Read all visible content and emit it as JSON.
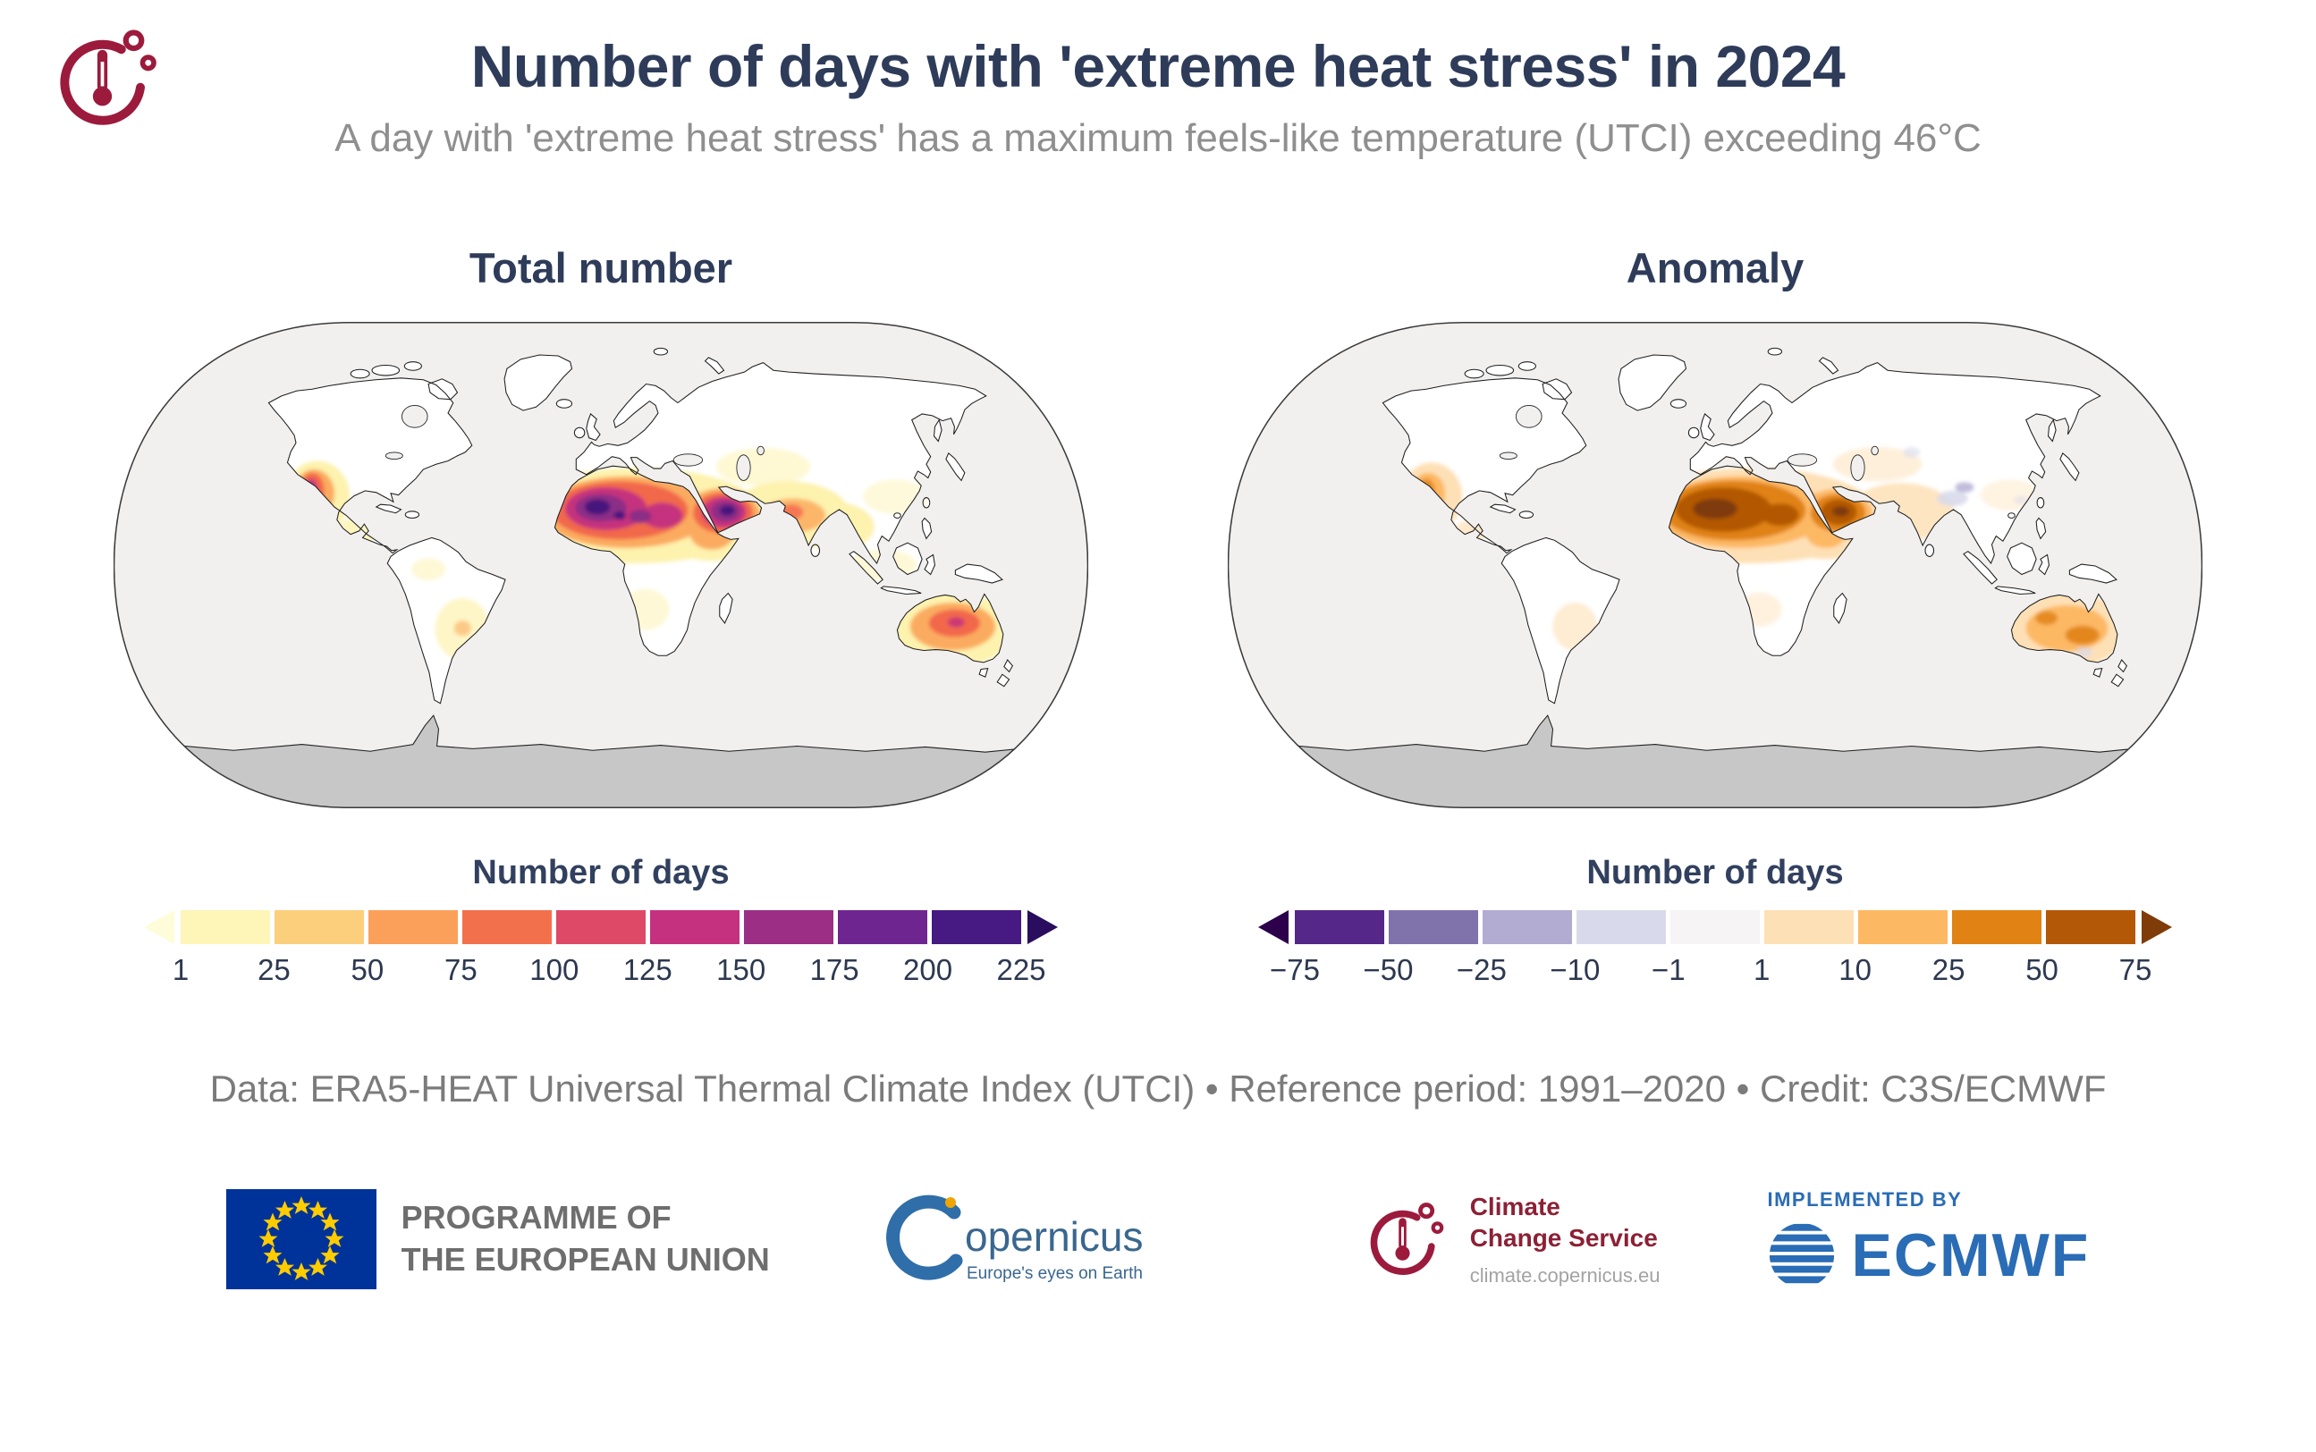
{
  "header": {
    "title": "Number of days with 'extreme heat stress' in 2024",
    "subtitle": "A day with 'extreme heat stress' has a maximum feels-like temperature (UTCI) exceeding 46°C"
  },
  "panels": {
    "total": {
      "title": "Total number"
    },
    "anomaly": {
      "title": "Anomaly"
    }
  },
  "colorbars": {
    "total": {
      "label": "Number of days",
      "ticks": [
        "1",
        "25",
        "50",
        "75",
        "100",
        "125",
        "150",
        "175",
        "200",
        "225"
      ],
      "colors": [
        "#fdf6b8",
        "#fccf7d",
        "#fba05b",
        "#f3704d",
        "#de4968",
        "#c5317e",
        "#9c2e86",
        "#6f2590",
        "#471982"
      ],
      "left_arrow": "#fefcd9",
      "right_arrow": "#2a0d5e"
    },
    "anomaly": {
      "label": "Number of days",
      "ticks": [
        "−75",
        "−50",
        "−25",
        "−10",
        "−1",
        "1",
        "10",
        "25",
        "50",
        "75"
      ],
      "colors": [
        "#542788",
        "#8073ac",
        "#b2abd2",
        "#d8daeb",
        "#f6f4f4",
        "#fee0b6",
        "#fdb863",
        "#e08214",
        "#b35806"
      ],
      "left_arrow": "#2d004b",
      "right_arrow": "#7f3b08"
    }
  },
  "footer": {
    "credit": "Data: ERA5-HEAT Universal Thermal Climate Index (UTCI) • Reference period: 1991–2020 • Credit: C3S/ECMWF"
  },
  "logos": {
    "eu": {
      "line1": "PROGRAMME OF",
      "line2": "THE EUROPEAN UNION"
    },
    "copernicus": {
      "wordmark": "opernicus",
      "tagline": "Europe's eyes on Earth"
    },
    "c3s": {
      "icon": "cloud-thermometer-icon",
      "line1": "Climate",
      "line2": "Change Service",
      "url": "climate.copernicus.eu"
    },
    "ecmwf": {
      "kicker": "IMPLEMENTED BY",
      "wordmark": "ECMWF"
    }
  },
  "chart_data": [
    {
      "type": "heatmap",
      "title": "Total number",
      "projection": "Robinson world map",
      "variable": "Number of days in 2024 with extreme heat stress (maximum UTCI exceeding 46°C)",
      "colorbar_label": "Number of days",
      "tick_values": [
        1,
        25,
        50,
        75,
        100,
        125,
        150,
        175,
        200,
        225
      ],
      "colors": [
        "#fdf6b8",
        "#fccf7d",
        "#fba05b",
        "#f3704d",
        "#de4968",
        "#c5317e",
        "#9c2e86",
        "#6f2590",
        "#471982"
      ],
      "arrow_colors": {
        "below": "#fefcd9",
        "above": "#2a0d5e"
      },
      "notable_regions": [
        {
          "region": "Sahara / North Africa",
          "approx_days": "100–225+"
        },
        {
          "region": "Arabian Peninsula / Persian Gulf",
          "approx_days": "100–225"
        },
        {
          "region": "Sahel and Horn of Africa",
          "approx_days": "25–100"
        },
        {
          "region": "Iran / Pakistan / northwest India",
          "approx_days": "25–100"
        },
        {
          "region": "Interior Australia",
          "approx_days": "25–125"
        },
        {
          "region": "SW United States / NW Mexico",
          "approx_days": "25–150"
        },
        {
          "region": "Interior South America (Gran Chaco)",
          "approx_days": "1–25"
        },
        {
          "region": "Southern Africa",
          "approx_days": "1–25"
        }
      ]
    },
    {
      "type": "heatmap",
      "title": "Anomaly",
      "projection": "Robinson world map",
      "variable": "Anomaly of number of days with extreme heat stress in 2024 relative to 1991–2020",
      "reference_period": "1991–2020",
      "colorbar_label": "Number of days",
      "tick_values": [
        -75,
        -50,
        -25,
        -10,
        -1,
        1,
        10,
        25,
        50,
        75
      ],
      "colors": [
        "#542788",
        "#8073ac",
        "#b2abd2",
        "#d8daeb",
        "#f6f4f4",
        "#fee0b6",
        "#fdb863",
        "#e08214",
        "#b35806"
      ],
      "arrow_colors": {
        "below": "#2d004b",
        "above": "#7f3b08"
      },
      "notable_regions": [
        {
          "region": "Sahara / North Africa",
          "approx_anomaly_days": "+25 to +75"
        },
        {
          "region": "Arabian Peninsula",
          "approx_anomaly_days": "+25 to +75"
        },
        {
          "region": "Australia",
          "approx_anomaly_days": "+10 to +50"
        },
        {
          "region": "SW United States / NW Mexico",
          "approx_anomaly_days": "+10 to +25"
        },
        {
          "region": "Parts of South and Central Asia",
          "approx_anomaly_days": "−10 to +10"
        }
      ]
    }
  ]
}
